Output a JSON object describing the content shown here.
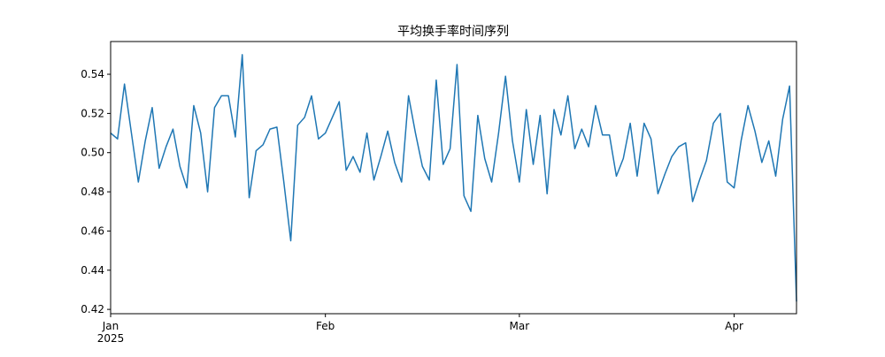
{
  "chart_data": {
    "type": "line",
    "title": "平均换手率时间序列",
    "xticks": [
      {
        "value": 0,
        "label": "Jan\n2025"
      },
      {
        "value": 31,
        "label": "Feb"
      },
      {
        "value": 59,
        "label": "Mar"
      },
      {
        "value": 90,
        "label": "Apr"
      }
    ],
    "xlim": [
      0,
      99
    ],
    "ylim": [
      0.4178,
      0.5567
    ],
    "yticks": [
      0.42,
      0.44,
      0.46,
      0.48,
      {
        "value": 0.5,
        "label": "0.50"
      },
      0.52,
      0.54
    ],
    "series": [
      {
        "name": "平均换手率",
        "color": "#1f77b4",
        "values": [
          0.51,
          0.507,
          0.535,
          0.51,
          0.485,
          0.506,
          0.523,
          0.492,
          0.503,
          0.512,
          0.493,
          0.482,
          0.524,
          0.51,
          0.48,
          0.523,
          0.529,
          0.529,
          0.508,
          0.55,
          0.477,
          0.501,
          0.504,
          0.512,
          0.513,
          0.485,
          0.455,
          0.514,
          0.518,
          0.529,
          0.507,
          0.51,
          0.518,
          0.526,
          0.491,
          0.498,
          0.49,
          0.51,
          0.486,
          0.498,
          0.511,
          0.495,
          0.485,
          0.529,
          0.51,
          0.493,
          0.486,
          0.537,
          0.494,
          0.502,
          0.545,
          0.478,
          0.47,
          0.519,
          0.497,
          0.485,
          0.51,
          0.539,
          0.506,
          0.485,
          0.522,
          0.494,
          0.519,
          0.479,
          0.522,
          0.509,
          0.529,
          0.502,
          0.512,
          0.503,
          0.524,
          0.509,
          0.509,
          0.488,
          0.497,
          0.515,
          0.488,
          0.515,
          0.507,
          0.479,
          0.489,
          0.498,
          0.503,
          0.505,
          0.475,
          0.486,
          0.496,
          0.515,
          0.52,
          0.485,
          0.482,
          0.506,
          0.524,
          0.511,
          0.495,
          0.506,
          0.488,
          0.517,
          0.534,
          0.424
        ]
      }
    ]
  }
}
